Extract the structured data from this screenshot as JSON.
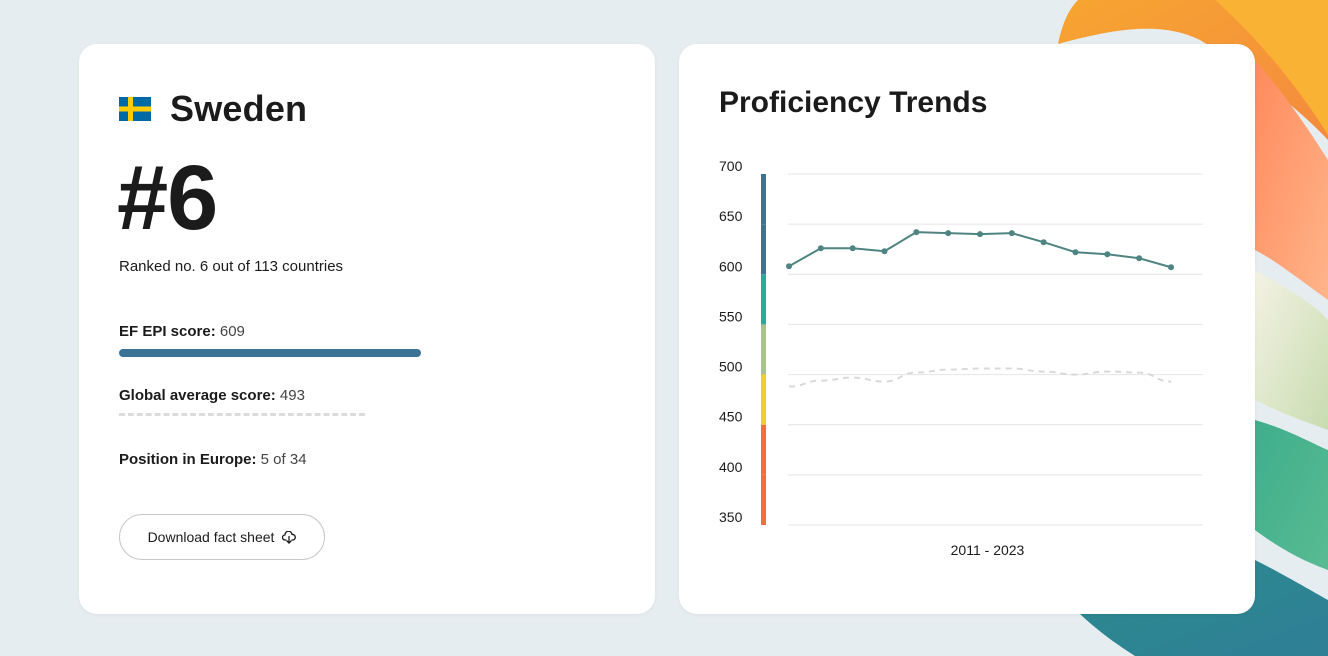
{
  "country": {
    "name": "Sweden",
    "flag_colors": {
      "blue": "#006aa7",
      "yellow": "#fecc02"
    },
    "rank": "#6",
    "rank_text": "Ranked no. 6 out of 113 countries"
  },
  "stats": {
    "score_label": "EF EPI score:",
    "score_value": "609",
    "score_fraction": 0.609,
    "global_label": "Global average score:",
    "global_value": "493",
    "europe_label": "Position in Europe:",
    "europe_value": "5 of 34"
  },
  "download": {
    "label": "Download fact sheet",
    "icon": "cloud-download-icon"
  },
  "trends": {
    "title": "Proficiency Trends"
  },
  "colors": {
    "accent": "#3a7396",
    "line": "#4e8482",
    "band_colors": [
      "#f36f3a",
      "#f36f3a",
      "#f3cd2c",
      "#a9c38a",
      "#2aab95",
      "#3a7396",
      "#3a7396"
    ]
  },
  "chart_data": {
    "type": "line",
    "title": "",
    "xlabel": "2011 - 2023",
    "ylabel": "",
    "ylim": [
      350,
      700
    ],
    "yticks": [
      700,
      650,
      600,
      550,
      500,
      450,
      400,
      350
    ],
    "grid": true,
    "series": [
      {
        "values": [
          608,
          626,
          626,
          623,
          642,
          641,
          640,
          641,
          632,
          622,
          620,
          616,
          607
        ]
      },
      {
        "style": "dashed",
        "values": [
          488,
          494,
          497,
          493,
          502,
          505,
          506,
          506,
          503,
          500,
          503,
          502,
          493
        ]
      }
    ]
  }
}
